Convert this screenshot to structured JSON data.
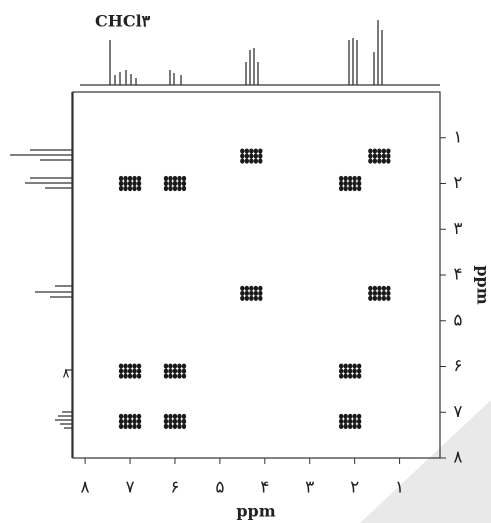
{
  "chart_data": {
    "type": "scatter",
    "annotations": [
      "CHCl۳",
      "۸"
    ],
    "xlabel": "ppm",
    "ylabel": "ppm",
    "x": [
      4.3,
      1.45,
      7.0,
      6.0,
      2.1,
      4.3,
      1.45,
      7.0,
      6.0,
      2.1,
      7.0,
      6.0,
      2.1
    ],
    "values": [
      1.4,
      1.4,
      2.0,
      2.0,
      2.0,
      4.4,
      4.4,
      6.1,
      6.1,
      6.1,
      7.2,
      7.2,
      7.2
    ],
    "color": "#1a1a1a",
    "xlim": [
      8.27,
      0.1
    ],
    "ylim": [
      0,
      8
    ],
    "y_reversed": true,
    "xticks": [
      {
        "value": 8,
        "label": "۸"
      },
      {
        "value": 7,
        "label": "۷"
      },
      {
        "value": 6,
        "label": "۶"
      },
      {
        "value": 5,
        "label": "۵"
      },
      {
        "value": 4,
        "label": "۴"
      },
      {
        "value": 3,
        "label": "۳"
      },
      {
        "value": 2,
        "label": "۲"
      },
      {
        "value": 1,
        "label": "۱"
      }
    ],
    "yticks": [
      {
        "value": 1,
        "label": "۱"
      },
      {
        "value": 2,
        "label": "۲"
      },
      {
        "value": 3,
        "label": "۳"
      },
      {
        "value": 4,
        "label": "۴"
      },
      {
        "value": 5,
        "label": "۵"
      },
      {
        "value": 6,
        "label": "۶"
      },
      {
        "value": 7,
        "label": "۷"
      },
      {
        "value": 8,
        "label": "۸"
      }
    ],
    "grid": false
  }
}
